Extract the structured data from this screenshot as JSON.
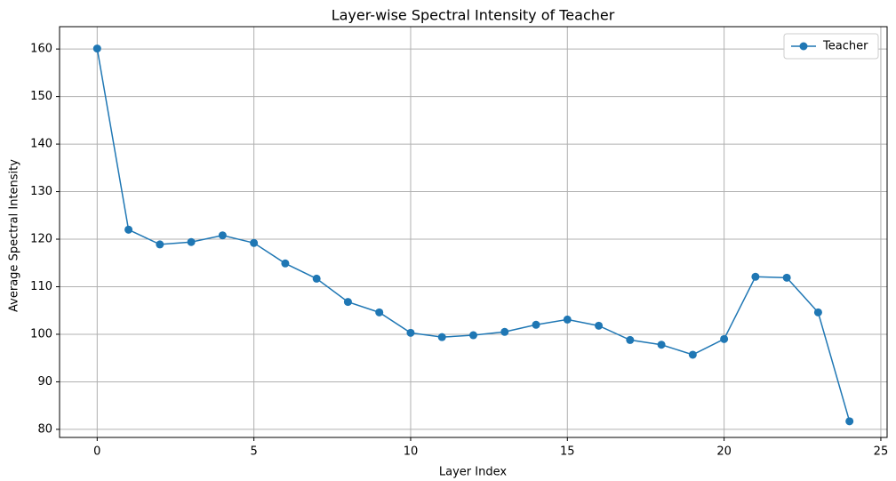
{
  "chart_data": {
    "type": "line",
    "title": "Layer-wise Spectral Intensity of Teacher",
    "x_label": "Layer Index",
    "y_label": "Average Spectral Intensity",
    "x": [
      0,
      1,
      2,
      3,
      4,
      5,
      6,
      7,
      8,
      9,
      10,
      11,
      12,
      13,
      14,
      15,
      16,
      17,
      18,
      19,
      20,
      21,
      22,
      23,
      24
    ],
    "series": [
      {
        "name": "Teacher",
        "color": "#1f77b4",
        "values": [
          160.1,
          122.0,
          118.9,
          119.4,
          120.8,
          119.2,
          114.9,
          111.7,
          106.8,
          104.6,
          100.3,
          99.4,
          99.8,
          100.5,
          102.0,
          103.1,
          101.8,
          98.8,
          97.8,
          95.7,
          99.0,
          112.1,
          111.9,
          104.6,
          81.7
        ]
      }
    ],
    "xlim": [
      -1.2,
      25.2
    ],
    "xticks": [
      0,
      5,
      10,
      15,
      20,
      25
    ],
    "ylim": [
      78.3,
      164.7
    ],
    "yticks": [
      80,
      90,
      100,
      110,
      120,
      130,
      140,
      150,
      160
    ],
    "grid": true,
    "legend": "upper right"
  }
}
